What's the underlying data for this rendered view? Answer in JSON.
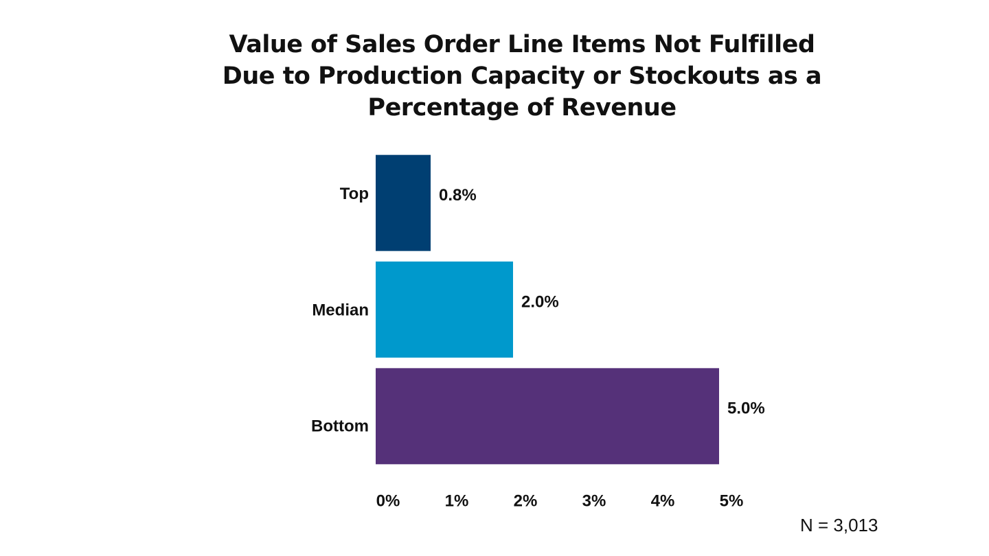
{
  "chart_data": {
    "type": "barh",
    "title": "Value of Sales Order Line Items Not Fulfilled Due to Production Capacity or Stockouts as a Percentage of Revenue",
    "categories": [
      "Top",
      "Median",
      "Bottom"
    ],
    "values": [
      0.8,
      2.0,
      5.0
    ],
    "value_labels": [
      "0.8%",
      "2.0%",
      "5.0%"
    ],
    "colors": [
      "#003f72",
      "#0099cc",
      "#553179"
    ],
    "xlim": [
      0,
      5
    ],
    "xticks": [
      {
        "value": 0,
        "label": "0%"
      },
      {
        "value": 1,
        "label": "1%"
      },
      {
        "value": 2,
        "label": "2%"
      },
      {
        "value": 3,
        "label": "3%"
      },
      {
        "value": 4,
        "label": "4%"
      },
      {
        "value": 5,
        "label": "5%"
      }
    ],
    "grid": false,
    "annotation": "N = 3,013"
  }
}
